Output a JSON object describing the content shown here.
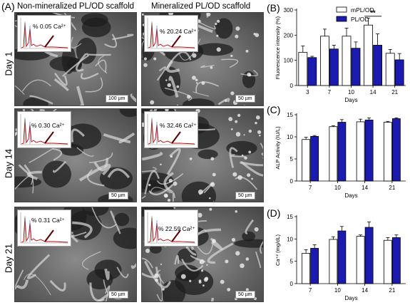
{
  "panel_a": {
    "label": "(A)",
    "col_left": "Non-mineralized PL/OD scaffold",
    "col_right": "Mineralized PL/OD scaffold",
    "rows": [
      {
        "day": "Day 1",
        "left_pct": "% 0.05 Ca²⁺",
        "right_pct": "% 20.24 Ca²⁺",
        "left_scale": "100 µm",
        "right_scale": "50 µm"
      },
      {
        "day": "Day 14",
        "left_pct": "% 0.30 Ca²⁺",
        "right_pct": "% 32.46 Ca²⁺",
        "left_scale": "50 µm",
        "right_scale": "50 µm"
      },
      {
        "day": "Day 21",
        "left_pct": "% 0.31 Ca²⁺",
        "right_pct": "% 22.59 Ca²⁺",
        "left_scale": "50 µm",
        "right_scale": "50 µm"
      }
    ]
  },
  "colors": {
    "mpl": "#ffffff",
    "pl": "#1b1bb0",
    "sem_dark": "#3a3a3a",
    "sem_light": "#cfcfcf"
  },
  "chart_data": [
    {
      "id": "B",
      "label": "(B)",
      "type": "bar",
      "ylabel": "Fluorescence intensity (%)",
      "xlabel": "Days",
      "categories": [
        "3",
        "7",
        "10",
        "14",
        "21"
      ],
      "ylim": [
        0,
        300
      ],
      "yticks": [
        "0",
        "100",
        "200",
        "300"
      ],
      "series": [
        {
          "name": "mPL/OD",
          "values": [
            132,
            196,
            196,
            240,
            128
          ],
          "errors": [
            25,
            28,
            32,
            28,
            15
          ]
        },
        {
          "name": "PL/OD",
          "values": [
            111,
            145,
            148,
            160,
            102
          ],
          "errors": [
            5,
            15,
            25,
            45,
            25
          ]
        }
      ],
      "annotation": "**",
      "legend": "top-left"
    },
    {
      "id": "C",
      "label": "(C)",
      "type": "bar",
      "ylabel": "ALP Activity (IU/L)",
      "xlabel": "Days",
      "categories": [
        "7",
        "10",
        "14",
        "21"
      ],
      "ylim": [
        0,
        15
      ],
      "yticks": [
        "0",
        "5",
        "10",
        "15"
      ],
      "series": [
        {
          "values": [
            9.4,
            12.3,
            13.4,
            13.3
          ],
          "errors": [
            0.5,
            0.2,
            0.6,
            0.2
          ]
        },
        {
          "values": [
            10.1,
            13.3,
            13.8,
            14.1
          ],
          "errors": [
            0.2,
            0.6,
            0.5,
            0.2
          ]
        }
      ]
    },
    {
      "id": "D",
      "label": "(D)",
      "type": "bar",
      "ylabel": "Ca⁺² (mg/dL)",
      "xlabel": "Days",
      "categories": [
        "7",
        "10",
        "14",
        "21"
      ],
      "ylim": [
        0,
        15
      ],
      "yticks": [
        "0",
        "5",
        "10",
        "15"
      ],
      "series": [
        {
          "values": [
            6.8,
            9.9,
            10.6,
            9.7
          ],
          "errors": [
            0.8,
            0.6,
            0.3,
            0.6
          ]
        },
        {
          "values": [
            7.9,
            11.8,
            12.6,
            10.3
          ],
          "errors": [
            0.8,
            1.0,
            1.2,
            0.6
          ]
        }
      ]
    }
  ]
}
